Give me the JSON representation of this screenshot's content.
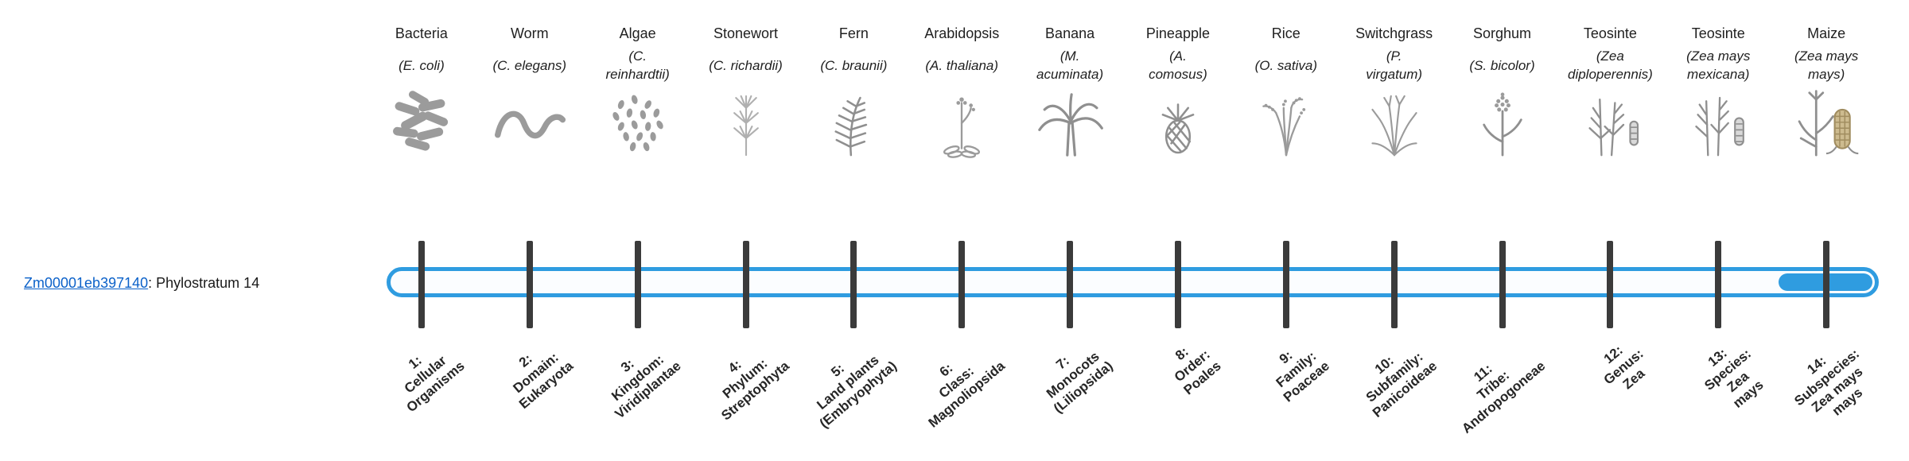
{
  "colors": {
    "accent": "#2f9ce0",
    "link": "#0b61c9",
    "tick": "#3b3b3b"
  },
  "gene": {
    "link_text": "Zm00001eb397140",
    "suffix": ": Phylostratum 14"
  },
  "bar": {
    "outline_color": "#2f9ce0",
    "fill_color": "#2f9ce0",
    "highlighted_stratum": 14,
    "total_strata": 14
  },
  "strata": [
    {
      "number": 1,
      "common": "Bacteria",
      "latin_lines": [
        "(E. coli)"
      ],
      "icon": "bacteria-icon",
      "tick_lines": [
        "1:",
        "Cellular",
        "Organisms"
      ]
    },
    {
      "number": 2,
      "common": "Worm",
      "latin_lines": [
        "(C. elegans)"
      ],
      "icon": "worm-icon",
      "tick_lines": [
        "2:",
        "Domain:",
        "Eukaryota"
      ]
    },
    {
      "number": 3,
      "common": "Algae",
      "latin_lines": [
        "(C.",
        "reinhardtii)"
      ],
      "icon": "algae-icon",
      "tick_lines": [
        "3:",
        "Kingdom:",
        "Viridiplantae"
      ]
    },
    {
      "number": 4,
      "common": "Stonewort",
      "latin_lines": [
        "(C. richardii)"
      ],
      "icon": "stonewort-icon",
      "tick_lines": [
        "4:",
        "Phylum:",
        "Streptophyta"
      ]
    },
    {
      "number": 5,
      "common": "Fern",
      "latin_lines": [
        "(C. braunii)"
      ],
      "icon": "fern-icon",
      "tick_lines": [
        "5:",
        "Land plants",
        "(Embryophyta)"
      ]
    },
    {
      "number": 6,
      "common": "Arabidopsis",
      "latin_lines": [
        "(A. thaliana)"
      ],
      "icon": "arabidopsis-icon",
      "tick_lines": [
        "6:",
        "Class:",
        "Magnoliopsida"
      ]
    },
    {
      "number": 7,
      "common": "Banana",
      "latin_lines": [
        "(M.",
        "acuminata)"
      ],
      "icon": "banana-icon",
      "tick_lines": [
        "7:",
        "Monocots",
        "(Liliopsida)"
      ]
    },
    {
      "number": 8,
      "common": "Pineapple",
      "latin_lines": [
        "(A.",
        "comosus)"
      ],
      "icon": "pineapple-icon",
      "tick_lines": [
        "8:",
        "Order:",
        "Poales"
      ]
    },
    {
      "number": 9,
      "common": "Rice",
      "latin_lines": [
        "(O. sativa)"
      ],
      "icon": "rice-icon",
      "tick_lines": [
        "9:",
        "Family:",
        "Poaceae"
      ]
    },
    {
      "number": 10,
      "common": "Switchgrass",
      "latin_lines": [
        "(P.",
        "virgatum)"
      ],
      "icon": "switchgrass-icon",
      "tick_lines": [
        "10:",
        "Subfamily:",
        "Panicoideae"
      ]
    },
    {
      "number": 11,
      "common": "Sorghum",
      "latin_lines": [
        "(S. bicolor)"
      ],
      "icon": "sorghum-icon",
      "tick_lines": [
        "11:",
        "Tribe:",
        "Andropogoneae"
      ]
    },
    {
      "number": 12,
      "common": "Teosinte",
      "latin_lines": [
        "(Zea",
        "diploperennis)"
      ],
      "icon": "teosinte-diploperennis-icon",
      "tick_lines": [
        "12:",
        "Genus:",
        "Zea"
      ]
    },
    {
      "number": 13,
      "common": "Teosinte",
      "latin_lines": [
        "(Zea mays",
        "mexicana)"
      ],
      "icon": "teosinte-mexicana-icon",
      "tick_lines": [
        "13:",
        "Species:",
        "Zea",
        "mays"
      ]
    },
    {
      "number": 14,
      "common": "Maize",
      "latin_lines": [
        "(Zea mays",
        "mays)"
      ],
      "icon": "maize-icon",
      "tick_lines": [
        "14:",
        "Subspecies:",
        "Zea mays",
        "mays"
      ]
    }
  ]
}
